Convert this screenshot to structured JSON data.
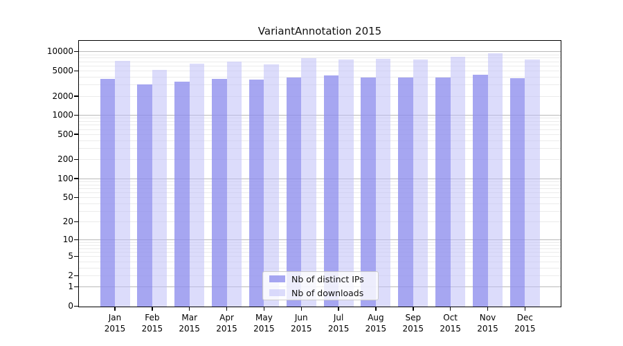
{
  "chart_data": {
    "type": "bar",
    "title": "VariantAnnotation 2015",
    "categories": [
      "Jan",
      "Feb",
      "Mar",
      "Apr",
      "May",
      "Jun",
      "Jul",
      "Aug",
      "Sep",
      "Oct",
      "Nov",
      "Dec"
    ],
    "category_year": "2015",
    "series": [
      {
        "name": "Nb of distinct IPs",
        "key": "distinct-ips",
        "color": "rgba(141,141,237,0.78)",
        "values": [
          3700,
          3030,
          3390,
          3680,
          3620,
          3870,
          4170,
          3870,
          3900,
          3900,
          4330,
          3775
        ]
      },
      {
        "name": "Nb of downloads",
        "key": "downloads",
        "color": "rgba(192,192,247,0.55)",
        "values": [
          7060,
          5180,
          6430,
          6930,
          6280,
          7925,
          7540,
          7745,
          7465,
          8335,
          9290,
          7540
        ]
      }
    ],
    "yscale": "log1p",
    "ylim": [
      0,
      14500
    ],
    "yticks": [
      10000,
      5000,
      2000,
      1000,
      500,
      200,
      100,
      50,
      20,
      10,
      5,
      2,
      1,
      0
    ],
    "grid": "both",
    "legend_position": "lower center",
    "colors": {
      "major_grid": "#b9b9b9",
      "minor_grid": "#ebebeb",
      "spine": "#000000",
      "text": "#000000"
    }
  }
}
